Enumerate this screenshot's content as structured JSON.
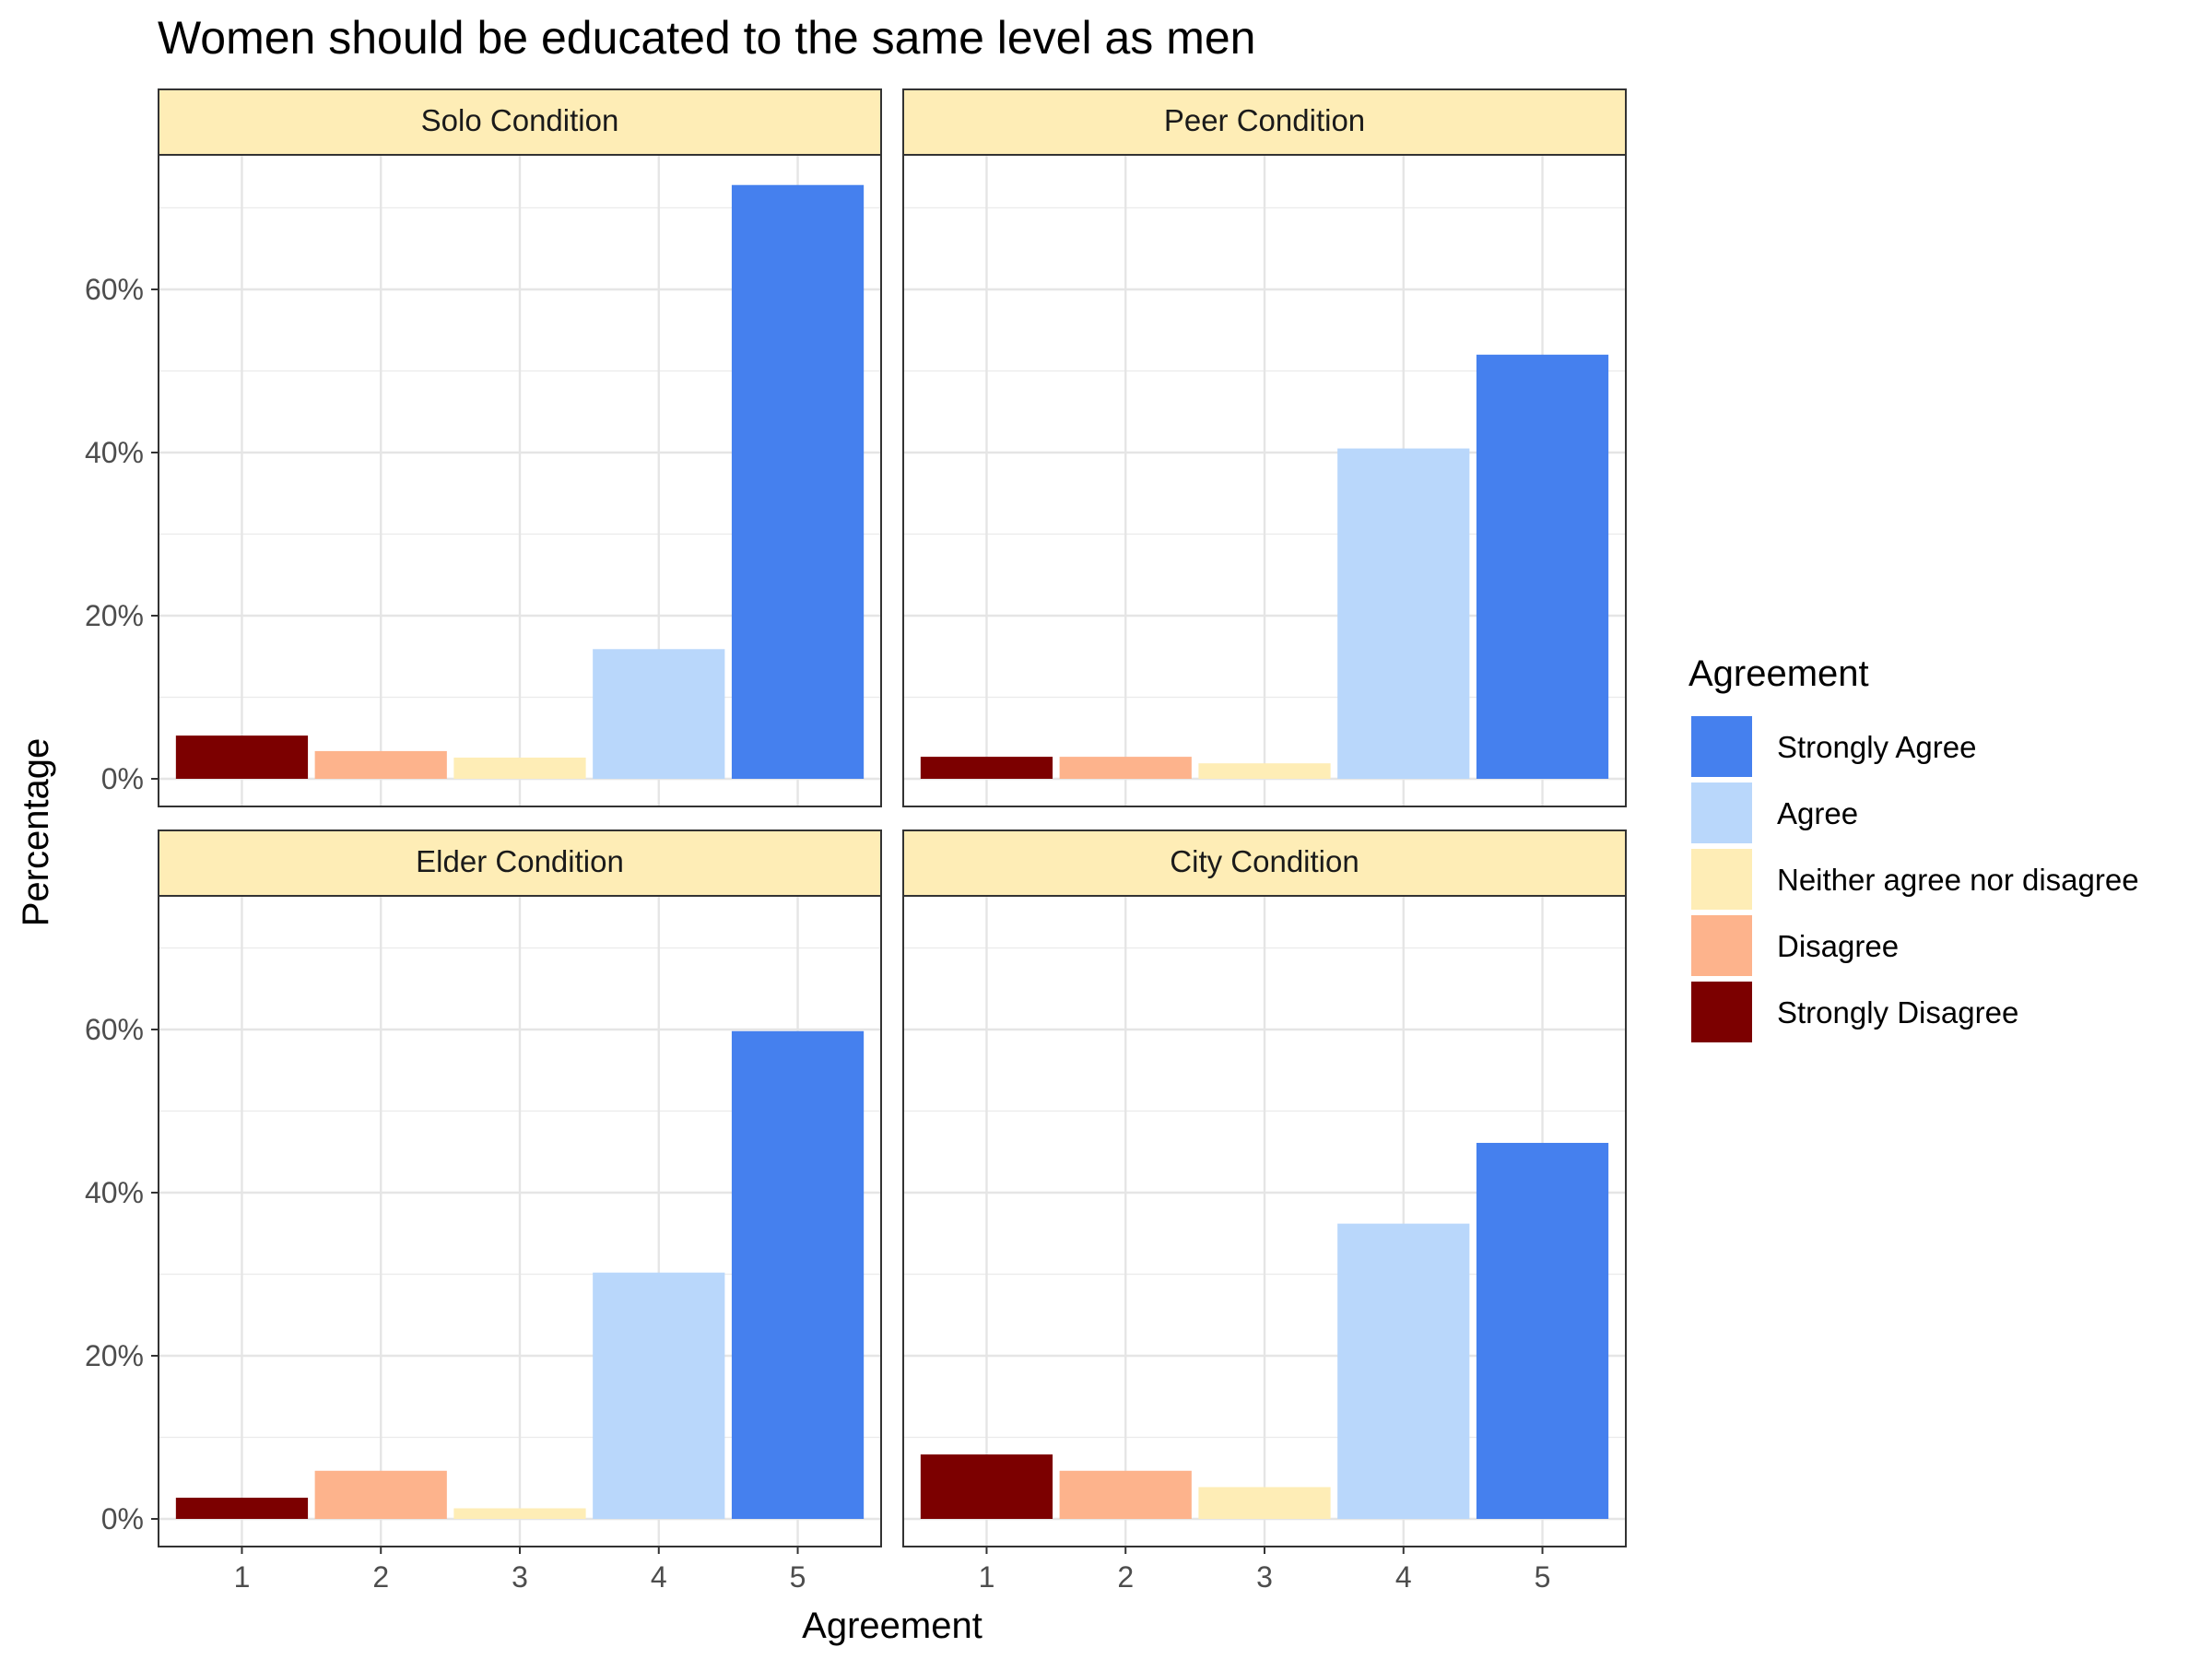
{
  "chart_data": {
    "type": "bar",
    "title": "Women should be educated to the same level as men",
    "xlabel": "Agreement",
    "ylabel": "Percentage",
    "categories": [
      "1",
      "2",
      "3",
      "4",
      "5"
    ],
    "y_ticks": [
      "0%",
      "20%",
      "40%",
      "60%"
    ],
    "ylim": [
      0,
      76
    ],
    "grid": true,
    "legend": {
      "title": "Agreement",
      "placement": "right",
      "entries": [
        {
          "label": "Strongly Agree",
          "color": "#4580ee"
        },
        {
          "label": "Agree",
          "color": "#b9d7fb"
        },
        {
          "label": "Neither agree nor disagree",
          "color": "#feedb6"
        },
        {
          "label": "Disagree",
          "color": "#fdb38c"
        },
        {
          "label": "Strongly Disagree",
          "color": "#7c0000"
        }
      ]
    },
    "category_colors": [
      "#7c0000",
      "#fdb38c",
      "#feedb6",
      "#b9d7fb",
      "#4580ee"
    ],
    "panels": [
      {
        "title": "Solo Condition",
        "values": [
          5.3,
          3.4,
          2.6,
          15.9,
          72.8
        ]
      },
      {
        "title": "Peer Condition",
        "values": [
          2.7,
          2.7,
          1.9,
          40.5,
          52.0
        ]
      },
      {
        "title": "Elder Condition",
        "values": [
          2.6,
          5.9,
          1.3,
          30.2,
          59.8
        ]
      },
      {
        "title": "City Condition",
        "values": [
          7.9,
          5.9,
          3.9,
          36.2,
          46.1
        ]
      }
    ]
  }
}
